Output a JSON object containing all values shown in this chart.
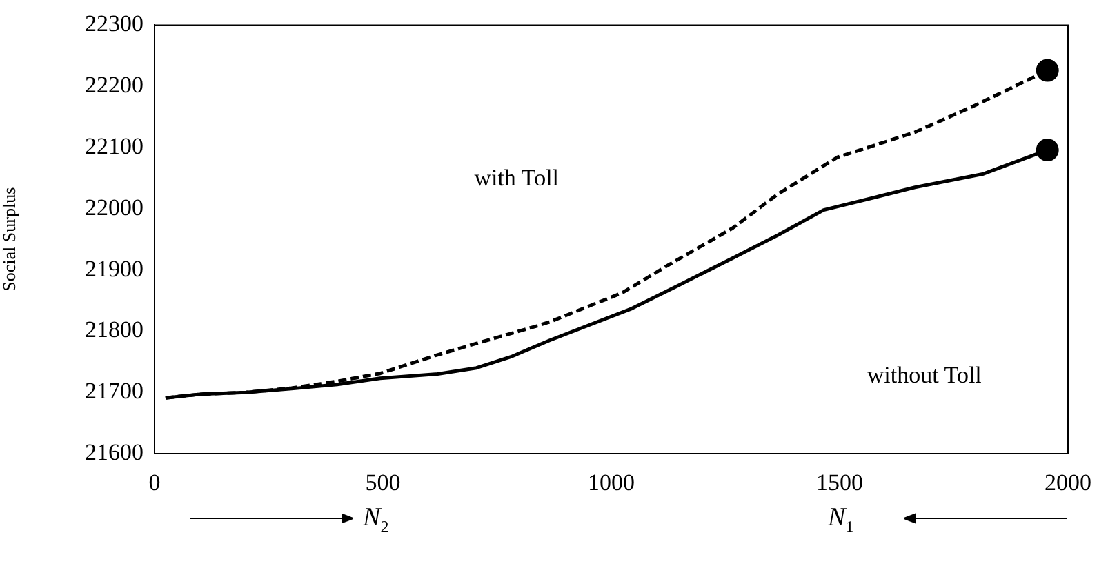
{
  "chart_data": {
    "type": "line",
    "ylabel": "Social Surplus",
    "xlim": [
      0,
      2000
    ],
    "xticks": [
      0,
      500,
      1000,
      1500,
      2000
    ],
    "ylim": [
      21600,
      22300
    ],
    "yticks": [
      21600,
      21700,
      21800,
      21900,
      22000,
      22100,
      22200,
      22300
    ],
    "grid": false,
    "legend": false,
    "marker": "none",
    "series": [
      {
        "color": "#000000",
        "line_style": "dashed",
        "x": [
          24,
          100,
          200,
          300,
          400,
          494,
          614,
          705,
          835,
          865,
          1025,
          1125,
          1265,
          1365,
          1495,
          1665,
          1800,
          1955
        ],
        "values": [
          21691,
          21697,
          21700,
          21707,
          21718,
          21731,
          21760,
          21780,
          21808,
          21815,
          21863,
          21908,
          21968,
          22024,
          22084,
          22125,
          22170,
          22226
        ]
      },
      {
        "color": "#000000",
        "line_style": "solid",
        "x": [
          24,
          100,
          200,
          300,
          400,
          494,
          620,
          705,
          780,
          865,
          1045,
          1145,
          1265,
          1365,
          1465,
          1585,
          1665,
          1815,
          1955
        ],
        "values": [
          21691,
          21697,
          21700,
          21706,
          21713,
          21723,
          21730,
          21740,
          21758,
          21785,
          21837,
          21874,
          21919,
          21957,
          21998,
          22020,
          22035,
          22057,
          22096
        ]
      },
      {
        "type": "scatter",
        "color": "#000000",
        "marker": "circle",
        "x": [
          1955,
          1955
        ],
        "values": [
          22226,
          22096
        ]
      }
    ],
    "annotations": [
      "with Toll",
      "without Toll",
      "N$_{2}$",
      "N$_{1}$"
    ]
  }
}
